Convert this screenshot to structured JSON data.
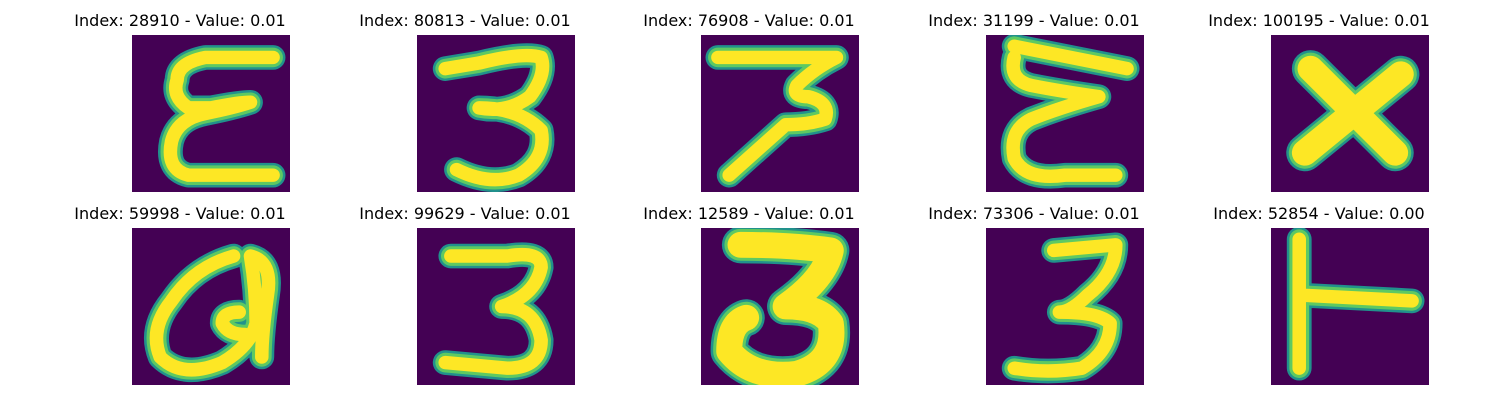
{
  "colors": {
    "background": "#440154",
    "ink_edge": "#21918c",
    "ink_mid": "#5ec962",
    "ink_core": "#fde725"
  },
  "panels": [
    {
      "title": "Index: 28910 - Value: 0.01",
      "glyph": "script-epsilon-glyph"
    },
    {
      "title": "Index: 80813 - Value: 0.01",
      "glyph": "digit-three-glyph"
    },
    {
      "title": "Index: 76908 - Value: 0.01",
      "glyph": "flat-top-three-glyph"
    },
    {
      "title": "Index: 31199 - Value: 0.01",
      "glyph": "script-epsilon-glyph"
    },
    {
      "title": "Index: 100195 - Value: 0.01",
      "glyph": "letter-x-glyph"
    },
    {
      "title": "Index: 59998 - Value: 0.01",
      "glyph": "letter-a-loop-glyph"
    },
    {
      "title": "Index: 99629 - Value: 0.01",
      "glyph": "digit-three-glyph"
    },
    {
      "title": "Index: 12589 - Value: 0.01",
      "glyph": "flat-top-three-glyph"
    },
    {
      "title": "Index: 73306 - Value: 0.01",
      "glyph": "digit-three-glyph"
    },
    {
      "title": "Index: 52854 - Value: 0.00",
      "glyph": "letter-t-sideways-glyph"
    }
  ]
}
